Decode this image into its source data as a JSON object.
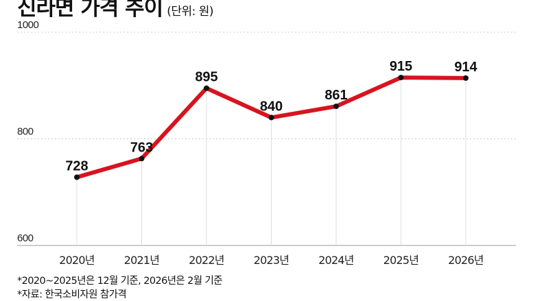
{
  "title": "신라면 가격 추이",
  "unit": "(단위: 원)",
  "notes": [
    "*2020~2025년은 12월 기준, 2026년은 2월 기준",
    "*자료: 한국소비자원 참가격"
  ],
  "colors": {
    "line": "#d7141f",
    "point": "#111111",
    "grid": "#cccccc"
  },
  "chart_data": {
    "type": "line",
    "title": "신라면 가격 추이",
    "categories": [
      "2020년",
      "2021년",
      "2022년",
      "2023년",
      "2024년",
      "2025년",
      "2026년"
    ],
    "values": [
      728,
      763,
      895,
      840,
      861,
      915,
      914
    ],
    "ylim": [
      600,
      1000
    ],
    "yticks": [
      600,
      800,
      1000
    ],
    "grid": true,
    "xlabel": "",
    "ylabel": ""
  }
}
